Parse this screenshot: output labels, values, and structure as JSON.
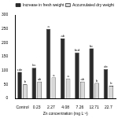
{
  "chart_data": {
    "type": "bar",
    "x_label": "Zn concentration (mg L⁻¹)",
    "categories": [
      "Control",
      "0.23",
      "2.27",
      "4.08",
      "7.26",
      "12.71",
      "22.7"
    ],
    "series": [
      {
        "name": "Increase in fresh weight",
        "color": "#2b2b2b",
        "values": [
          95,
          110,
          250,
          215,
          165,
          180,
          105
        ],
        "letters": [
          "cde",
          "bc",
          "a",
          "ab",
          "bcd",
          "bc",
          "de"
        ]
      },
      {
        "name": "Accumulated dry weight",
        "color": "#d9d9d9",
        "values": [
          50,
          60,
          75,
          70,
          60,
          55,
          45
        ],
        "letters": [
          "b",
          "ab",
          "a",
          "a",
          "ab",
          "b",
          "b"
        ]
      }
    ],
    "ylim": [
      0,
      300
    ],
    "yticks": [
      0,
      50,
      100,
      150,
      200,
      250,
      300
    ],
    "legend": "upper right",
    "grid": false
  }
}
